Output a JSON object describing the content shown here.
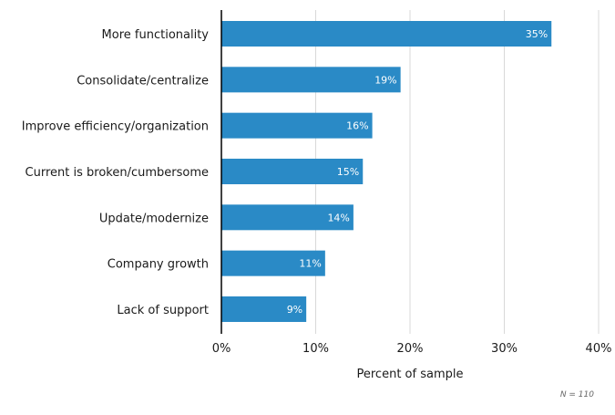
{
  "chart_data": {
    "type": "bar",
    "orientation": "horizontal",
    "categories": [
      "More functionality",
      "Consolidate/centralize",
      "Improve efficiency/organization",
      "Current is broken/cumbersome",
      "Update/modernize",
      "Company growth",
      "Lack of support"
    ],
    "values": [
      35,
      19,
      16,
      15,
      14,
      11,
      9
    ],
    "value_labels": [
      "35%",
      "19%",
      "16%",
      "15%",
      "14%",
      "11%",
      "9%"
    ],
    "title": "",
    "xlabel": "Percent of sample",
    "ylabel": "",
    "xlim": [
      0,
      40
    ],
    "xticks": [
      0,
      10,
      20,
      30,
      40
    ],
    "xtick_labels": [
      "0%",
      "10%",
      "20%",
      "30%",
      "40%"
    ],
    "grid": true,
    "bar_color": "#2a8ac6",
    "annotation": "N = 110"
  }
}
